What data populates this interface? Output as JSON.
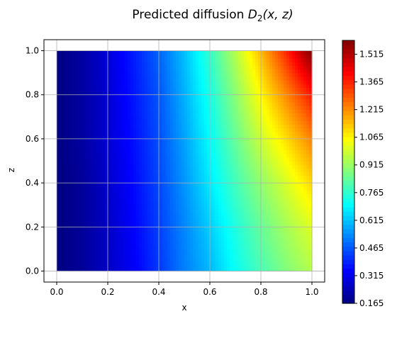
{
  "chart_data": {
    "type": "heatmap",
    "title": "Predicted diffusion D₂(x, z)",
    "title_parts": {
      "prefix": "Predicted diffusion ",
      "symbol": "D",
      "subscript": "2",
      "args": "(x, z)"
    },
    "xlabel": "x",
    "ylabel": "z",
    "xlim": [
      -0.05,
      1.05
    ],
    "ylim": [
      -0.05,
      1.05
    ],
    "x_ticks": [
      "0.0",
      "0.2",
      "0.4",
      "0.6",
      "0.8",
      "1.0"
    ],
    "y_ticks": [
      "0.0",
      "0.2",
      "0.4",
      "0.6",
      "0.8",
      "1.0"
    ],
    "grid": true,
    "colormap": "jet",
    "colorbar": {
      "range": [
        0.165,
        1.59
      ],
      "ticks": [
        "0.165",
        "0.315",
        "0.465",
        "0.615",
        "0.765",
        "0.915",
        "1.065",
        "1.215",
        "1.365",
        "1.515"
      ]
    },
    "field": {
      "description_values": "D increases with x; near x=1 it increases with z",
      "x": [
        0.0,
        0.1,
        0.2,
        0.3,
        0.4,
        0.5,
        0.6,
        0.7,
        0.8,
        0.9,
        1.0
      ],
      "z": [
        0.0,
        0.2,
        0.4,
        0.6,
        0.8,
        1.0
      ],
      "values": [
        [
          0.165,
          0.2,
          0.26,
          0.33,
          0.42,
          0.52,
          0.6,
          0.71,
          0.8,
          0.88,
          0.95
        ],
        [
          0.165,
          0.2,
          0.26,
          0.34,
          0.43,
          0.53,
          0.63,
          0.74,
          0.84,
          0.93,
          1.01
        ],
        [
          0.165,
          0.2,
          0.27,
          0.35,
          0.44,
          0.55,
          0.67,
          0.79,
          0.9,
          1.0,
          1.11
        ],
        [
          0.165,
          0.21,
          0.28,
          0.36,
          0.45,
          0.57,
          0.7,
          0.84,
          0.98,
          1.1,
          1.23
        ],
        [
          0.165,
          0.21,
          0.28,
          0.37,
          0.46,
          0.59,
          0.73,
          0.89,
          1.06,
          1.22,
          1.38
        ],
        [
          0.165,
          0.21,
          0.29,
          0.38,
          0.48,
          0.61,
          0.77,
          0.95,
          1.15,
          1.36,
          1.59
        ]
      ]
    }
  }
}
